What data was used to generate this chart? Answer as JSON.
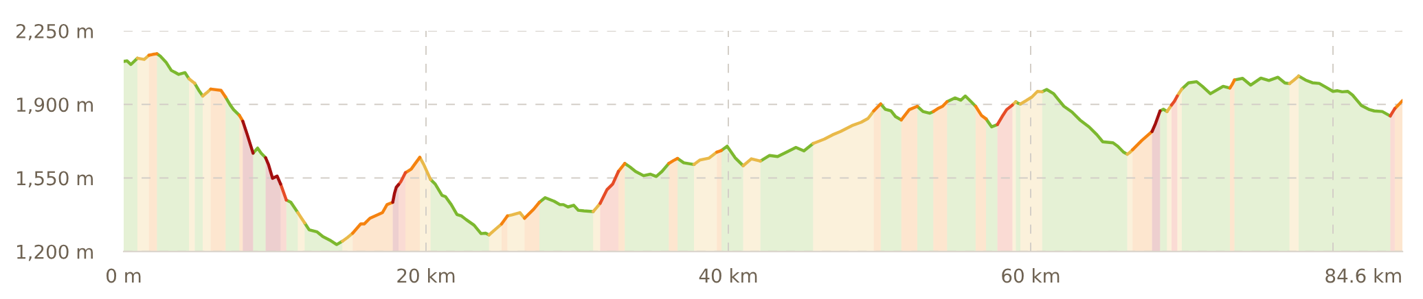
{
  "chart_data": {
    "type": "area",
    "xlim": [
      0,
      84.6
    ],
    "xticks": [
      {
        "value": 0,
        "label": "0 m"
      },
      {
        "value": 20,
        "label": "20 km"
      },
      {
        "value": 40,
        "label": "40 km"
      },
      {
        "value": 60,
        "label": "60 km"
      },
      {
        "value": 80,
        "label": null
      },
      {
        "value": 84.6,
        "label": "84.6 km"
      }
    ],
    "ylim": [
      1200,
      2250
    ],
    "yticks": [
      {
        "value": 1200,
        "label": "1,200 m"
      },
      {
        "value": 1550,
        "label": "1,550 m"
      },
      {
        "value": 1900,
        "label": "1,900 m"
      },
      {
        "value": 2250,
        "label": "2,250 m"
      }
    ],
    "grid": true,
    "series": [
      {
        "color": "#7cb82f",
        "x": [
          0,
          0.23,
          0.48,
          0.91,
          1.36,
          2.2,
          2.42,
          2.8,
          3.15,
          3.64,
          4.06,
          4.32,
          4.51,
          4.7,
          4.97,
          5.23,
          5.76,
          6.74,
          7.05,
          7.27,
          7.65,
          7.88,
          8.56,
          8.86,
          9.09,
          9.39,
          9.58,
          10.76,
          11.06,
          11.52,
          11.75,
          11.97,
          12.27,
          12.8,
          13.18,
          13.64,
          14.09,
          14.47,
          15.15,
          20.3,
          20.61,
          21.06,
          21.29,
          21.67,
          22.05,
          22.35,
          22.65,
          23.18,
          23.64,
          23.94,
          24.17,
          24.55,
          27.5,
          27.88,
          28.48,
          28.86,
          29.09,
          29.39,
          29.77,
          30.08,
          30.45,
          31.06,
          31.52,
          33.15,
          33.48,
          33.86,
          34.39,
          34.85,
          35.23,
          35.61,
          36.06,
          36.35,
          36.64,
          37.05,
          37.73,
          38.11,
          39.55,
          39.92,
          40.45,
          40.98,
          41.52,
          42.12,
          42.73,
          43.26,
          43.86,
          44.47,
          45.0,
          45.61,
          46.36,
          50.08,
          50.38,
          50.76,
          51.06,
          51.44,
          51.97,
          52.5,
          52.88,
          53.33,
          53.56,
          53.86,
          54.47,
          55.0,
          55.38,
          55.68,
          56.06,
          56.36,
          56.74,
          57.05,
          57.42,
          57.8,
          58.11,
          59.02,
          59.17,
          59.32,
          59.7,
          60.76,
          61.06,
          61.52,
          61.82,
          62.2,
          62.73,
          63.26,
          63.86,
          64.39,
          64.77,
          65.45,
          65.76,
          66.14,
          66.39,
          66.74,
          68.56,
          68.79,
          69.02,
          69.32,
          70.0,
          70.45,
          70.98,
          71.36,
          71.89,
          72.73,
          73.18,
          73.33,
          73.48,
          74.02,
          74.55,
          75.23,
          75.76,
          76.36,
          76.82,
          77.12,
          77.42,
          77.73,
          78.18,
          78.64,
          79.09,
          79.55,
          80.0,
          80.3,
          80.61,
          80.98,
          81.29,
          81.89,
          82.42,
          82.73,
          83.26,
          83.79
        ],
        "values": [
          2105,
          2107,
          2090,
          2120,
          null,
          2141,
          2130,
          2101,
          2062,
          2043,
          2051,
          2022,
          null,
          2000,
          1967,
          1940,
          null,
          1935,
          1897,
          1875,
          1848,
          null,
          1668,
          1692,
          1668,
          1646,
          null,
          1445,
          1434,
          1385,
          null,
          1336,
          1303,
          1293,
          1271,
          1254,
          1233,
          1249,
          null,
          1543,
          1521,
          1467,
          1461,
          1423,
          1376,
          1369,
          1352,
          1325,
          1285,
          1287,
          1279,
          null,
          1434,
          1456,
          1439,
          1423,
          1423,
          1412,
          1420,
          1396,
          1393,
          1390,
          null,
          1619,
          1603,
          1581,
          1561,
          1568,
          1557,
          1581,
          1619,
          null,
          1643,
          1622,
          1614,
          null,
          1681,
          1701,
          1646,
          1608,
          null,
          1630,
          1657,
          1652,
          1673,
          1695,
          1679,
          1714,
          null,
          1902,
          1877,
          1869,
          1842,
          1826,
          null,
          1891,
          1866,
          1858,
          1866,
          null,
          1913,
          1931,
          1920,
          1940,
          1913,
          1891,
          null,
          1831,
          1793,
          1804,
          null,
          1913,
          1905,
          1902,
          null,
          1960,
          1971,
          1951,
          1924,
          1891,
          1864,
          1826,
          1793,
          1755,
          1722,
          1717,
          1701,
          1673,
          1663,
          null,
          1869,
          1877,
          1866,
          null,
          1973,
          2003,
          2008,
          1986,
          1951,
          1986,
          1978,
          null,
          2016,
          2024,
          1992,
          2025,
          2014,
          2029,
          2002,
          1999,
          null,
          2035,
          2016,
          2003,
          2000,
          1981,
          1962,
          1965,
          1960,
          1962,
          1945,
          1894,
          1875,
          1869,
          1866,
          1845
        ]
      },
      {
        "color": "#e9b949",
        "x": [
          0.91,
          1.36,
          1.67,
          2.2,
          4.32,
          4.51,
          4.7,
          4.97,
          5.23,
          5.5,
          5.76,
          6.44,
          11.52,
          11.75,
          11.97,
          12.27,
          14.47,
          14.81,
          15.15,
          15.68,
          19.59,
          19.85,
          20.3,
          20.61,
          24.17,
          24.55,
          25.0,
          25.19,
          25.38,
          25.68,
          26.21,
          26.52,
          27.12,
          31.06,
          31.29,
          31.52,
          31.97,
          37.73,
          38.11,
          38.71,
          39.24,
          39.55,
          40.98,
          41.52,
          42.12,
          42.73,
          45.61,
          46.36,
          46.89,
          47.42,
          48.18,
          48.79,
          49.24,
          49.62,
          50.08,
          58.79,
          58.91,
          59.02,
          59.17,
          59.32,
          59.7,
          60.08,
          60.45,
          60.76,
          61.06,
          66.39,
          66.57,
          66.74,
          67.35,
          69.02,
          69.17,
          69.32,
          69.51,
          69.7,
          69.85,
          70.0,
          70.45,
          77.12,
          77.42,
          77.73
        ],
        "values": [
          2120,
          2114,
          2134,
          null,
          2022,
          2011,
          2000,
          null,
          1940,
          1956,
          1973,
          null,
          1385,
          1360,
          1336,
          null,
          1249,
          1267,
          1287,
          null,
          1648,
          1614,
          1543,
          null,
          1279,
          1303,
          1331,
          null,
          1369,
          1374,
          1385,
          1358,
          null,
          1390,
          1409,
          1429,
          null,
          1614,
          1635,
          1644,
          1673,
          null,
          1608,
          1641,
          1630,
          null,
          1714,
          1735,
          1755,
          1771,
          1799,
          1815,
          1833,
          1869,
          null,
          1897,
          1905,
          1913,
          null,
          1902,
          1918,
          1935,
          1962,
          1960,
          null,
          1663,
          1672,
          1684,
          null,
          1866,
          1881,
          1897,
          null,
          1940,
          1957,
          1973,
          null,
          1999,
          2016,
          2035
        ]
      },
      {
        "color": "#f5820f",
        "x": [
          1.67,
          1.93,
          2.2,
          2.42,
          5.76,
          6.44,
          6.74,
          7.05,
          7.65,
          7.77,
          7.88,
          8.18,
          15.15,
          15.68,
          15.91,
          16.29,
          16.82,
          17.12,
          17.42,
          17.8,
          18.03,
          18.64,
          19.02,
          19.24,
          19.59,
          19.85,
          25.0,
          25.19,
          25.38,
          25.68,
          26.52,
          27.12,
          27.5,
          27.88,
          32.73,
          32.94,
          33.15,
          33.48,
          36.06,
          36.35,
          36.64,
          37.05,
          39.24,
          39.4,
          39.55,
          39.92,
          49.62,
          49.85,
          50.08,
          50.38,
          51.44,
          51.97,
          52.5,
          52.88,
          53.56,
          53.86,
          54.17,
          54.47,
          55.0,
          56.36,
          56.74,
          57.05,
          57.42,
          66.74,
          67.35,
          68.03,
          68.26,
          73.18,
          73.33,
          73.48,
          74.02,
          84.09,
          84.35,
          84.6
        ],
        "values": [
          2134,
          2138,
          2141,
          null,
          1973,
          1967,
          1935,
          null,
          1848,
          1834,
          1820,
          null,
          1287,
          1331,
          1331,
          1358,
          1375,
          1385,
          1423,
          1434,
          null,
          1575,
          1592,
          1614,
          1648,
          null,
          1331,
          1350,
          1369,
          null,
          1358,
          1401,
          1434,
          null,
          1581,
          1600,
          1619,
          null,
          1619,
          1632,
          1643,
          null,
          1673,
          1677,
          1681,
          null,
          1869,
          1886,
          1902,
          null,
          1826,
          1875,
          1891,
          null,
          1866,
          1880,
          1891,
          1913,
          null,
          1891,
          1848,
          1831,
          null,
          1684,
          1728,
          1771,
          null,
          1978,
          1995,
          2016,
          null,
          1880,
          1899,
          1918
        ]
      },
      {
        "color": "#e64c27",
        "x": [
          10.38,
          10.57,
          10.76,
          11.06,
          18.18,
          18.33,
          18.64,
          19.02,
          31.52,
          31.97,
          32.35,
          32.73,
          33.15,
          57.8,
          58.11,
          58.41,
          58.79,
          59.02,
          69.32,
          69.51,
          69.7,
          70.0,
          83.79,
          83.94,
          84.09
        ],
        "values": [
          1521,
          1483,
          1445,
          null,
          1518,
          1532,
          1575,
          null,
          1429,
          1494,
          1521,
          1581,
          null,
          1804,
          1842,
          1875,
          1897,
          null,
          1897,
          1915,
          1940,
          null,
          1845,
          1863,
          1880
        ]
      },
      {
        "color": "#a30f0f",
        "x": [
          7.88,
          8.18,
          8.56,
          8.86,
          9.39,
          9.58,
          9.85,
          10.15,
          10.38,
          10.76,
          17.8,
          17.92,
          18.03,
          18.18,
          18.33,
          68.03,
          68.26,
          68.56
        ],
        "values": [
          1820,
          1755,
          1668,
          null,
          1646,
          1614,
          1548,
          1559,
          1521,
          null,
          1434,
          1478,
          1505,
          1518,
          null,
          1771,
          1809,
          1869
        ]
      }
    ]
  }
}
